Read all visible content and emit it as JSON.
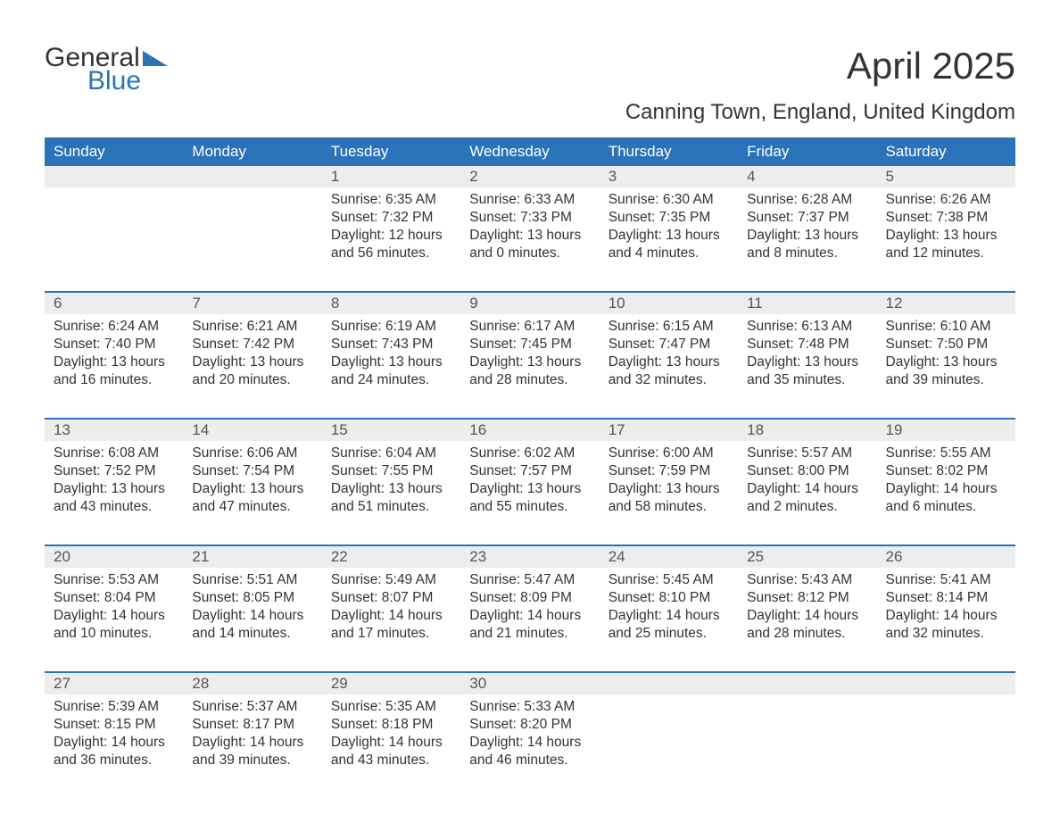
{
  "logo": {
    "word1": "General",
    "word2": "Blue",
    "tri_color": "#2a73b8"
  },
  "title": "April 2025",
  "subtitle": "Canning Town, England, United Kingdom",
  "colors": {
    "header_bg": "#2a73b8",
    "header_text": "#ffffff",
    "daynum_bg": "#ededed",
    "week_border": "#2a73b8",
    "body_text": "#333333"
  },
  "day_headers": [
    "Sunday",
    "Monday",
    "Tuesday",
    "Wednesday",
    "Thursday",
    "Friday",
    "Saturday"
  ],
  "weeks": [
    [
      {
        "day": "",
        "sunrise": "",
        "sunset": "",
        "daylight": ""
      },
      {
        "day": "",
        "sunrise": "",
        "sunset": "",
        "daylight": ""
      },
      {
        "day": "1",
        "sunrise": "Sunrise: 6:35 AM",
        "sunset": "Sunset: 7:32 PM",
        "daylight": "Daylight: 12 hours and 56 minutes."
      },
      {
        "day": "2",
        "sunrise": "Sunrise: 6:33 AM",
        "sunset": "Sunset: 7:33 PM",
        "daylight": "Daylight: 13 hours and 0 minutes."
      },
      {
        "day": "3",
        "sunrise": "Sunrise: 6:30 AM",
        "sunset": "Sunset: 7:35 PM",
        "daylight": "Daylight: 13 hours and 4 minutes."
      },
      {
        "day": "4",
        "sunrise": "Sunrise: 6:28 AM",
        "sunset": "Sunset: 7:37 PM",
        "daylight": "Daylight: 13 hours and 8 minutes."
      },
      {
        "day": "5",
        "sunrise": "Sunrise: 6:26 AM",
        "sunset": "Sunset: 7:38 PM",
        "daylight": "Daylight: 13 hours and 12 minutes."
      }
    ],
    [
      {
        "day": "6",
        "sunrise": "Sunrise: 6:24 AM",
        "sunset": "Sunset: 7:40 PM",
        "daylight": "Daylight: 13 hours and 16 minutes."
      },
      {
        "day": "7",
        "sunrise": "Sunrise: 6:21 AM",
        "sunset": "Sunset: 7:42 PM",
        "daylight": "Daylight: 13 hours and 20 minutes."
      },
      {
        "day": "8",
        "sunrise": "Sunrise: 6:19 AM",
        "sunset": "Sunset: 7:43 PM",
        "daylight": "Daylight: 13 hours and 24 minutes."
      },
      {
        "day": "9",
        "sunrise": "Sunrise: 6:17 AM",
        "sunset": "Sunset: 7:45 PM",
        "daylight": "Daylight: 13 hours and 28 minutes."
      },
      {
        "day": "10",
        "sunrise": "Sunrise: 6:15 AM",
        "sunset": "Sunset: 7:47 PM",
        "daylight": "Daylight: 13 hours and 32 minutes."
      },
      {
        "day": "11",
        "sunrise": "Sunrise: 6:13 AM",
        "sunset": "Sunset: 7:48 PM",
        "daylight": "Daylight: 13 hours and 35 minutes."
      },
      {
        "day": "12",
        "sunrise": "Sunrise: 6:10 AM",
        "sunset": "Sunset: 7:50 PM",
        "daylight": "Daylight: 13 hours and 39 minutes."
      }
    ],
    [
      {
        "day": "13",
        "sunrise": "Sunrise: 6:08 AM",
        "sunset": "Sunset: 7:52 PM",
        "daylight": "Daylight: 13 hours and 43 minutes."
      },
      {
        "day": "14",
        "sunrise": "Sunrise: 6:06 AM",
        "sunset": "Sunset: 7:54 PM",
        "daylight": "Daylight: 13 hours and 47 minutes."
      },
      {
        "day": "15",
        "sunrise": "Sunrise: 6:04 AM",
        "sunset": "Sunset: 7:55 PM",
        "daylight": "Daylight: 13 hours and 51 minutes."
      },
      {
        "day": "16",
        "sunrise": "Sunrise: 6:02 AM",
        "sunset": "Sunset: 7:57 PM",
        "daylight": "Daylight: 13 hours and 55 minutes."
      },
      {
        "day": "17",
        "sunrise": "Sunrise: 6:00 AM",
        "sunset": "Sunset: 7:59 PM",
        "daylight": "Daylight: 13 hours and 58 minutes."
      },
      {
        "day": "18",
        "sunrise": "Sunrise: 5:57 AM",
        "sunset": "Sunset: 8:00 PM",
        "daylight": "Daylight: 14 hours and 2 minutes."
      },
      {
        "day": "19",
        "sunrise": "Sunrise: 5:55 AM",
        "sunset": "Sunset: 8:02 PM",
        "daylight": "Daylight: 14 hours and 6 minutes."
      }
    ],
    [
      {
        "day": "20",
        "sunrise": "Sunrise: 5:53 AM",
        "sunset": "Sunset: 8:04 PM",
        "daylight": "Daylight: 14 hours and 10 minutes."
      },
      {
        "day": "21",
        "sunrise": "Sunrise: 5:51 AM",
        "sunset": "Sunset: 8:05 PM",
        "daylight": "Daylight: 14 hours and 14 minutes."
      },
      {
        "day": "22",
        "sunrise": "Sunrise: 5:49 AM",
        "sunset": "Sunset: 8:07 PM",
        "daylight": "Daylight: 14 hours and 17 minutes."
      },
      {
        "day": "23",
        "sunrise": "Sunrise: 5:47 AM",
        "sunset": "Sunset: 8:09 PM",
        "daylight": "Daylight: 14 hours and 21 minutes."
      },
      {
        "day": "24",
        "sunrise": "Sunrise: 5:45 AM",
        "sunset": "Sunset: 8:10 PM",
        "daylight": "Daylight: 14 hours and 25 minutes."
      },
      {
        "day": "25",
        "sunrise": "Sunrise: 5:43 AM",
        "sunset": "Sunset: 8:12 PM",
        "daylight": "Daylight: 14 hours and 28 minutes."
      },
      {
        "day": "26",
        "sunrise": "Sunrise: 5:41 AM",
        "sunset": "Sunset: 8:14 PM",
        "daylight": "Daylight: 14 hours and 32 minutes."
      }
    ],
    [
      {
        "day": "27",
        "sunrise": "Sunrise: 5:39 AM",
        "sunset": "Sunset: 8:15 PM",
        "daylight": "Daylight: 14 hours and 36 minutes."
      },
      {
        "day": "28",
        "sunrise": "Sunrise: 5:37 AM",
        "sunset": "Sunset: 8:17 PM",
        "daylight": "Daylight: 14 hours and 39 minutes."
      },
      {
        "day": "29",
        "sunrise": "Sunrise: 5:35 AM",
        "sunset": "Sunset: 8:18 PM",
        "daylight": "Daylight: 14 hours and 43 minutes."
      },
      {
        "day": "30",
        "sunrise": "Sunrise: 5:33 AM",
        "sunset": "Sunset: 8:20 PM",
        "daylight": "Daylight: 14 hours and 46 minutes."
      },
      {
        "day": "",
        "sunrise": "",
        "sunset": "",
        "daylight": ""
      },
      {
        "day": "",
        "sunrise": "",
        "sunset": "",
        "daylight": ""
      },
      {
        "day": "",
        "sunrise": "",
        "sunset": "",
        "daylight": ""
      }
    ]
  ]
}
